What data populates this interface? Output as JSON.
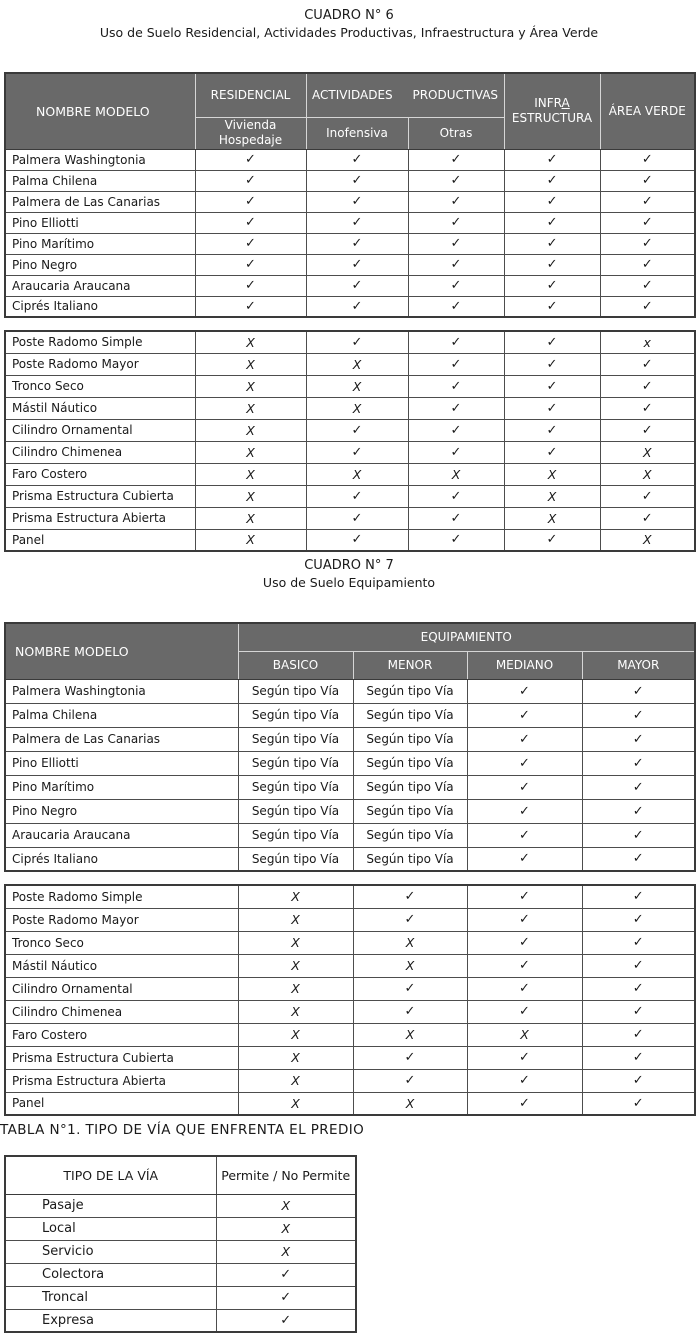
{
  "cuadro6": {
    "title": "CUADRO N° 6",
    "subtitle": "Uso de Suelo Residencial, Actividades Productivas, Infraestructura y Área Verde",
    "header": {
      "nombre": "NOMBRE MODELO",
      "residencial": "RESIDENCIAL",
      "vivienda": "Vivienda",
      "hospedaje": "Hospedaje",
      "actividades": "ACTIVIDADES PRODUCTIVAS",
      "inofensiva": "Inofensiva",
      "otras": "Otras",
      "infra_prefix": "INFR",
      "infra_underlined": "A",
      "infra_line2": "ESTRUCTURA",
      "area_verde": "ÁREA VERDE"
    },
    "group1": [
      {
        "name": "Palmera Washingtonia",
        "values": [
          "✓",
          "✓",
          "✓",
          "✓",
          "✓"
        ]
      },
      {
        "name": "Palma Chilena",
        "values": [
          "✓",
          "✓",
          "✓",
          "✓",
          "✓"
        ]
      },
      {
        "name": "Palmera de Las Canarias",
        "values": [
          "✓",
          "✓",
          "✓",
          "✓",
          "✓"
        ]
      },
      {
        "name": "Pino Elliotti",
        "values": [
          "✓",
          "✓",
          "✓",
          "✓",
          "✓"
        ]
      },
      {
        "name": "Pino Marítimo",
        "values": [
          "✓",
          "✓",
          "✓",
          "✓",
          "✓"
        ]
      },
      {
        "name": "Pino Negro",
        "values": [
          "✓",
          "✓",
          "✓",
          "✓",
          "✓"
        ]
      },
      {
        "name": "Araucaria Araucana",
        "values": [
          "✓",
          "✓",
          "✓",
          "✓",
          "✓"
        ]
      },
      {
        "name": "Ciprés Italiano",
        "values": [
          "✓",
          "✓",
          "✓",
          "✓",
          "✓"
        ]
      }
    ],
    "group2": [
      {
        "name": "Poste Radomo Simple",
        "values": [
          "X",
          "✓",
          "✓",
          "✓",
          "x"
        ]
      },
      {
        "name": "Poste Radomo Mayor",
        "values": [
          "X",
          "X",
          "✓",
          "✓",
          "✓"
        ]
      },
      {
        "name": "Tronco Seco",
        "values": [
          "X",
          "X",
          "✓",
          "✓",
          "✓"
        ]
      },
      {
        "name": "Mástil Náutico",
        "values": [
          "X",
          "X",
          "✓",
          "✓",
          "✓"
        ]
      },
      {
        "name": "Cilindro Ornamental",
        "values": [
          "X",
          "✓",
          "✓",
          "✓",
          "✓"
        ]
      },
      {
        "name": "Cilindro Chimenea",
        "values": [
          "X",
          "✓",
          "✓",
          "✓",
          "X"
        ]
      },
      {
        "name": "Faro Costero",
        "values": [
          "X",
          "X",
          "X",
          "X",
          "X"
        ]
      },
      {
        "name": "Prisma Estructura Cubierta",
        "values": [
          "X",
          "✓",
          "✓",
          "X",
          "✓"
        ]
      },
      {
        "name": "Prisma Estructura Abierta",
        "values": [
          "X",
          "✓",
          "✓",
          "X",
          "✓"
        ]
      },
      {
        "name": "Panel",
        "values": [
          "X",
          "✓",
          "✓",
          "✓",
          "X"
        ]
      }
    ]
  },
  "cuadro7": {
    "title": "CUADRO N° 7",
    "subtitle": "Uso de Suelo Equipamiento",
    "header": {
      "nombre": "NOMBRE MODELO",
      "equipamiento": "EQUIPAMIENTO",
      "basico": "BASICO",
      "menor": "MENOR",
      "mediano": "MEDIANO",
      "mayor": "MAYOR"
    },
    "group1": [
      {
        "name": "Palmera Washingtonia",
        "values": [
          "Según tipo Vía",
          "Según tipo Vía",
          "✓",
          "✓"
        ]
      },
      {
        "name": "Palma Chilena",
        "values": [
          "Según tipo Vía",
          "Según tipo Vía",
          "✓",
          "✓"
        ]
      },
      {
        "name": "Palmera de Las Canarias",
        "values": [
          "Según tipo Vía",
          "Según tipo Vía",
          "✓",
          "✓"
        ]
      },
      {
        "name": "Pino Elliotti",
        "values": [
          "Según tipo Vía",
          "Según tipo Vía",
          "✓",
          "✓"
        ]
      },
      {
        "name": "Pino Marítimo",
        "values": [
          "Según tipo Vía",
          "Según tipo Vía",
          "✓",
          "✓"
        ]
      },
      {
        "name": "Pino Negro",
        "values": [
          "Según tipo Vía",
          "Según tipo Vía",
          "✓",
          "✓"
        ]
      },
      {
        "name": "Araucaria Araucana",
        "values": [
          "Según tipo Vía",
          "Según tipo Vía",
          "✓",
          "✓"
        ]
      },
      {
        "name": "Ciprés Italiano",
        "values": [
          "Según tipo Vía",
          "Según tipo Vía",
          "✓",
          "✓"
        ]
      }
    ],
    "group2": [
      {
        "name": "Poste Radomo Simple",
        "values": [
          "X",
          "✓",
          "✓",
          "✓"
        ]
      },
      {
        "name": "Poste Radomo Mayor",
        "values": [
          "X",
          "✓",
          "✓",
          "✓"
        ]
      },
      {
        "name": "Tronco Seco",
        "values": [
          "X",
          "X",
          "✓",
          "✓"
        ]
      },
      {
        "name": "Mástil Náutico",
        "values": [
          "X",
          "X",
          "✓",
          "✓"
        ]
      },
      {
        "name": "Cilindro Ornamental",
        "values": [
          "X",
          "✓",
          "✓",
          "✓"
        ]
      },
      {
        "name": "Cilindro Chimenea",
        "values": [
          "X",
          "✓",
          "✓",
          "✓"
        ]
      },
      {
        "name": "Faro Costero",
        "values": [
          "X",
          "X",
          "X",
          "✓"
        ]
      },
      {
        "name": "Prisma Estructura Cubierta",
        "values": [
          "X",
          "✓",
          "✓",
          "✓"
        ]
      },
      {
        "name": "Prisma Estructura Abierta",
        "values": [
          "X",
          "✓",
          "✓",
          "✓"
        ]
      },
      {
        "name": "Panel",
        "values": [
          "X",
          "X",
          "✓",
          "✓"
        ]
      }
    ]
  },
  "tabla1": {
    "caption": "TABLA N°1. TIPO DE VÍA QUE ENFRENTA EL PREDIO",
    "header": {
      "tipo": "TIPO DE LA VÍA",
      "permite": "Permite / No Permite"
    },
    "rows": [
      {
        "name": "Pasaje",
        "values": [
          "X"
        ]
      },
      {
        "name": "Local",
        "values": [
          "X"
        ]
      },
      {
        "name": "Servicio",
        "values": [
          "X"
        ]
      },
      {
        "name": "Colectora",
        "values": [
          "✓"
        ]
      },
      {
        "name": "Troncal",
        "values": [
          "✓"
        ]
      },
      {
        "name": "Expresa",
        "values": [
          "✓"
        ]
      }
    ]
  },
  "colors": {
    "header_bg": "#696969",
    "header_text": "#ffffff",
    "border_dark": "#3a3a3a",
    "border_cell": "#4d4d4d",
    "header_divider": "#d6d6d6"
  }
}
